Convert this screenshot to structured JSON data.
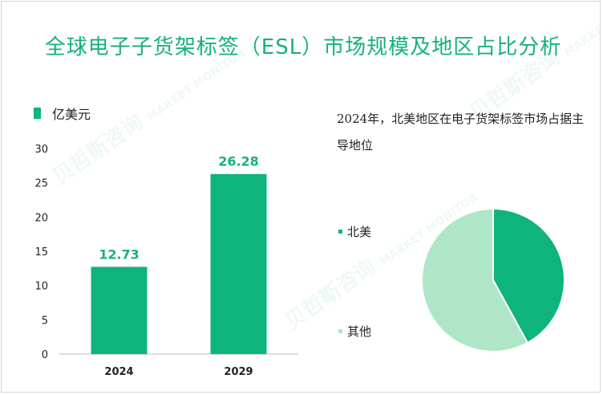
{
  "title": "全球电子子货架标签（ESL）市场规模及地区占比分析",
  "chart_data": [
    {
      "type": "bar",
      "unit_legend": "亿美元",
      "categories": [
        "2024",
        "2029"
      ],
      "values": [
        12.73,
        26.28
      ],
      "value_labels": [
        "12.73",
        "26.28"
      ],
      "ylim": [
        0,
        30
      ],
      "yticks": [
        "0",
        "5",
        "10",
        "15",
        "20",
        "25",
        "30"
      ],
      "color": "#0fb47c",
      "label_color": "#16b27a"
    },
    {
      "type": "pie",
      "title": "2024年，北美地区在电子货架标签市场占据主导地位",
      "slices": [
        {
          "name": "北美",
          "value": 42,
          "color": "#0fb47c"
        },
        {
          "name": "其他",
          "value": 58,
          "color": "#aee6c7"
        }
      ]
    }
  ],
  "watermark": {
    "cn": "贝哲斯咨询",
    "en": "MARKET MONITOR"
  }
}
